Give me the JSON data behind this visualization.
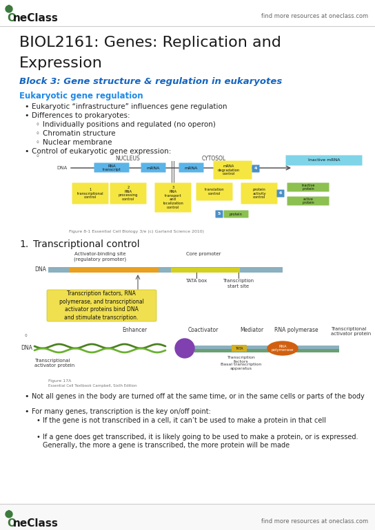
{
  "bg_color": "#ffffff",
  "title_line1": "BIOL2161: Genes: Replication and",
  "title_line2": "Expression",
  "subtitle": "Block 3: Gene structure & regulation in eukaryotes",
  "section_header": "Eukaryotic gene regulation",
  "bullet1": "Eukaryotic “infrastructure” influences gene regulation",
  "bullet2": "Differences to prokaryotes:",
  "sub_bullet1": "Individually positions and regulated (no operon)",
  "sub_bullet2": "Chromatin structure",
  "sub_bullet3": "Nuclear membrane",
  "bullet3": "Control of eukaryotic gene expression:",
  "numbered1": "1.  Transcriptional control",
  "caption1": "Figure 8-1 Essential Cell Biology 3/e (c) Garland Science 2010)",
  "box_text": "Transcription factors, RNA\npolymerase, and transcriptional\nactivator proteins bind DNA\nand stimulate transcription.",
  "bottom_bullets": [
    "Not all genes in the body are turned off at the same time, or in the same cells or parts of the body",
    "For many genes, transcription is the key on/off point:",
    "If the gene is not transcribed in a cell, it can’t be used to make a protein in that cell",
    "If a gene does get transcribed, it is likely going to be used to make a protein, or is expressed. Generally, the more a gene is transcribed, the more protein will be made"
  ],
  "logo_green": "#3d7a3d",
  "header_blue": "#1565c0",
  "section_blue": "#1e88e5",
  "title_color": "#1a1a1a",
  "text_color": "#222222",
  "gray_text": "#666666",
  "yellow_box": "#f5e642",
  "blue_box": "#5ab4e8",
  "cyan_box": "#7fd4e8",
  "green_box": "#8cc050",
  "blue_num": "#4a90c8"
}
